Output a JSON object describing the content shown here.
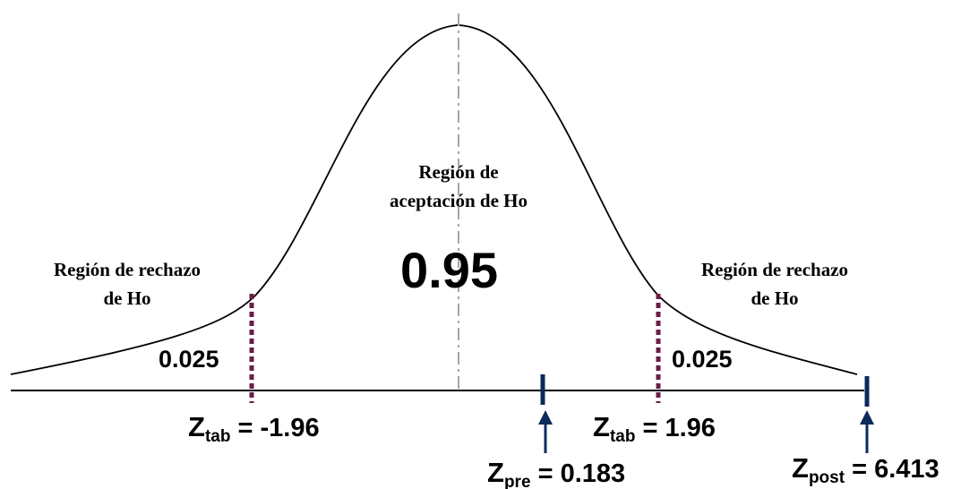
{
  "center_label": [
    "Región de",
    "aceptación de Ho"
  ],
  "center_value": "0.95",
  "left_label": [
    "Región de rechazo",
    "de Ho"
  ],
  "right_label": [
    "Región de rechazo",
    "de Ho"
  ],
  "left_tail_value": "0.025",
  "right_tail_value": "0.025",
  "z_tab_left": {
    "main": "Z",
    "sub": "tab",
    "rest": " = -1.96",
    "value": -1.96
  },
  "z_tab_right": {
    "main": "Z",
    "sub": "tab",
    "rest": " = 1.96",
    "value": 1.96
  },
  "z_pre": {
    "main": "Z",
    "sub": "pre",
    "rest": " = 0.183",
    "value": 0.183
  },
  "z_post": {
    "main": "Z",
    "sub": "post",
    "rest": " = 6.413",
    "value": 6.413
  },
  "colors": {
    "curve": "#000000",
    "axis": "#000000",
    "critical_lines": "#6b1d45",
    "markers": "#0b2a5c",
    "center_line": "#a6a6a6"
  }
}
